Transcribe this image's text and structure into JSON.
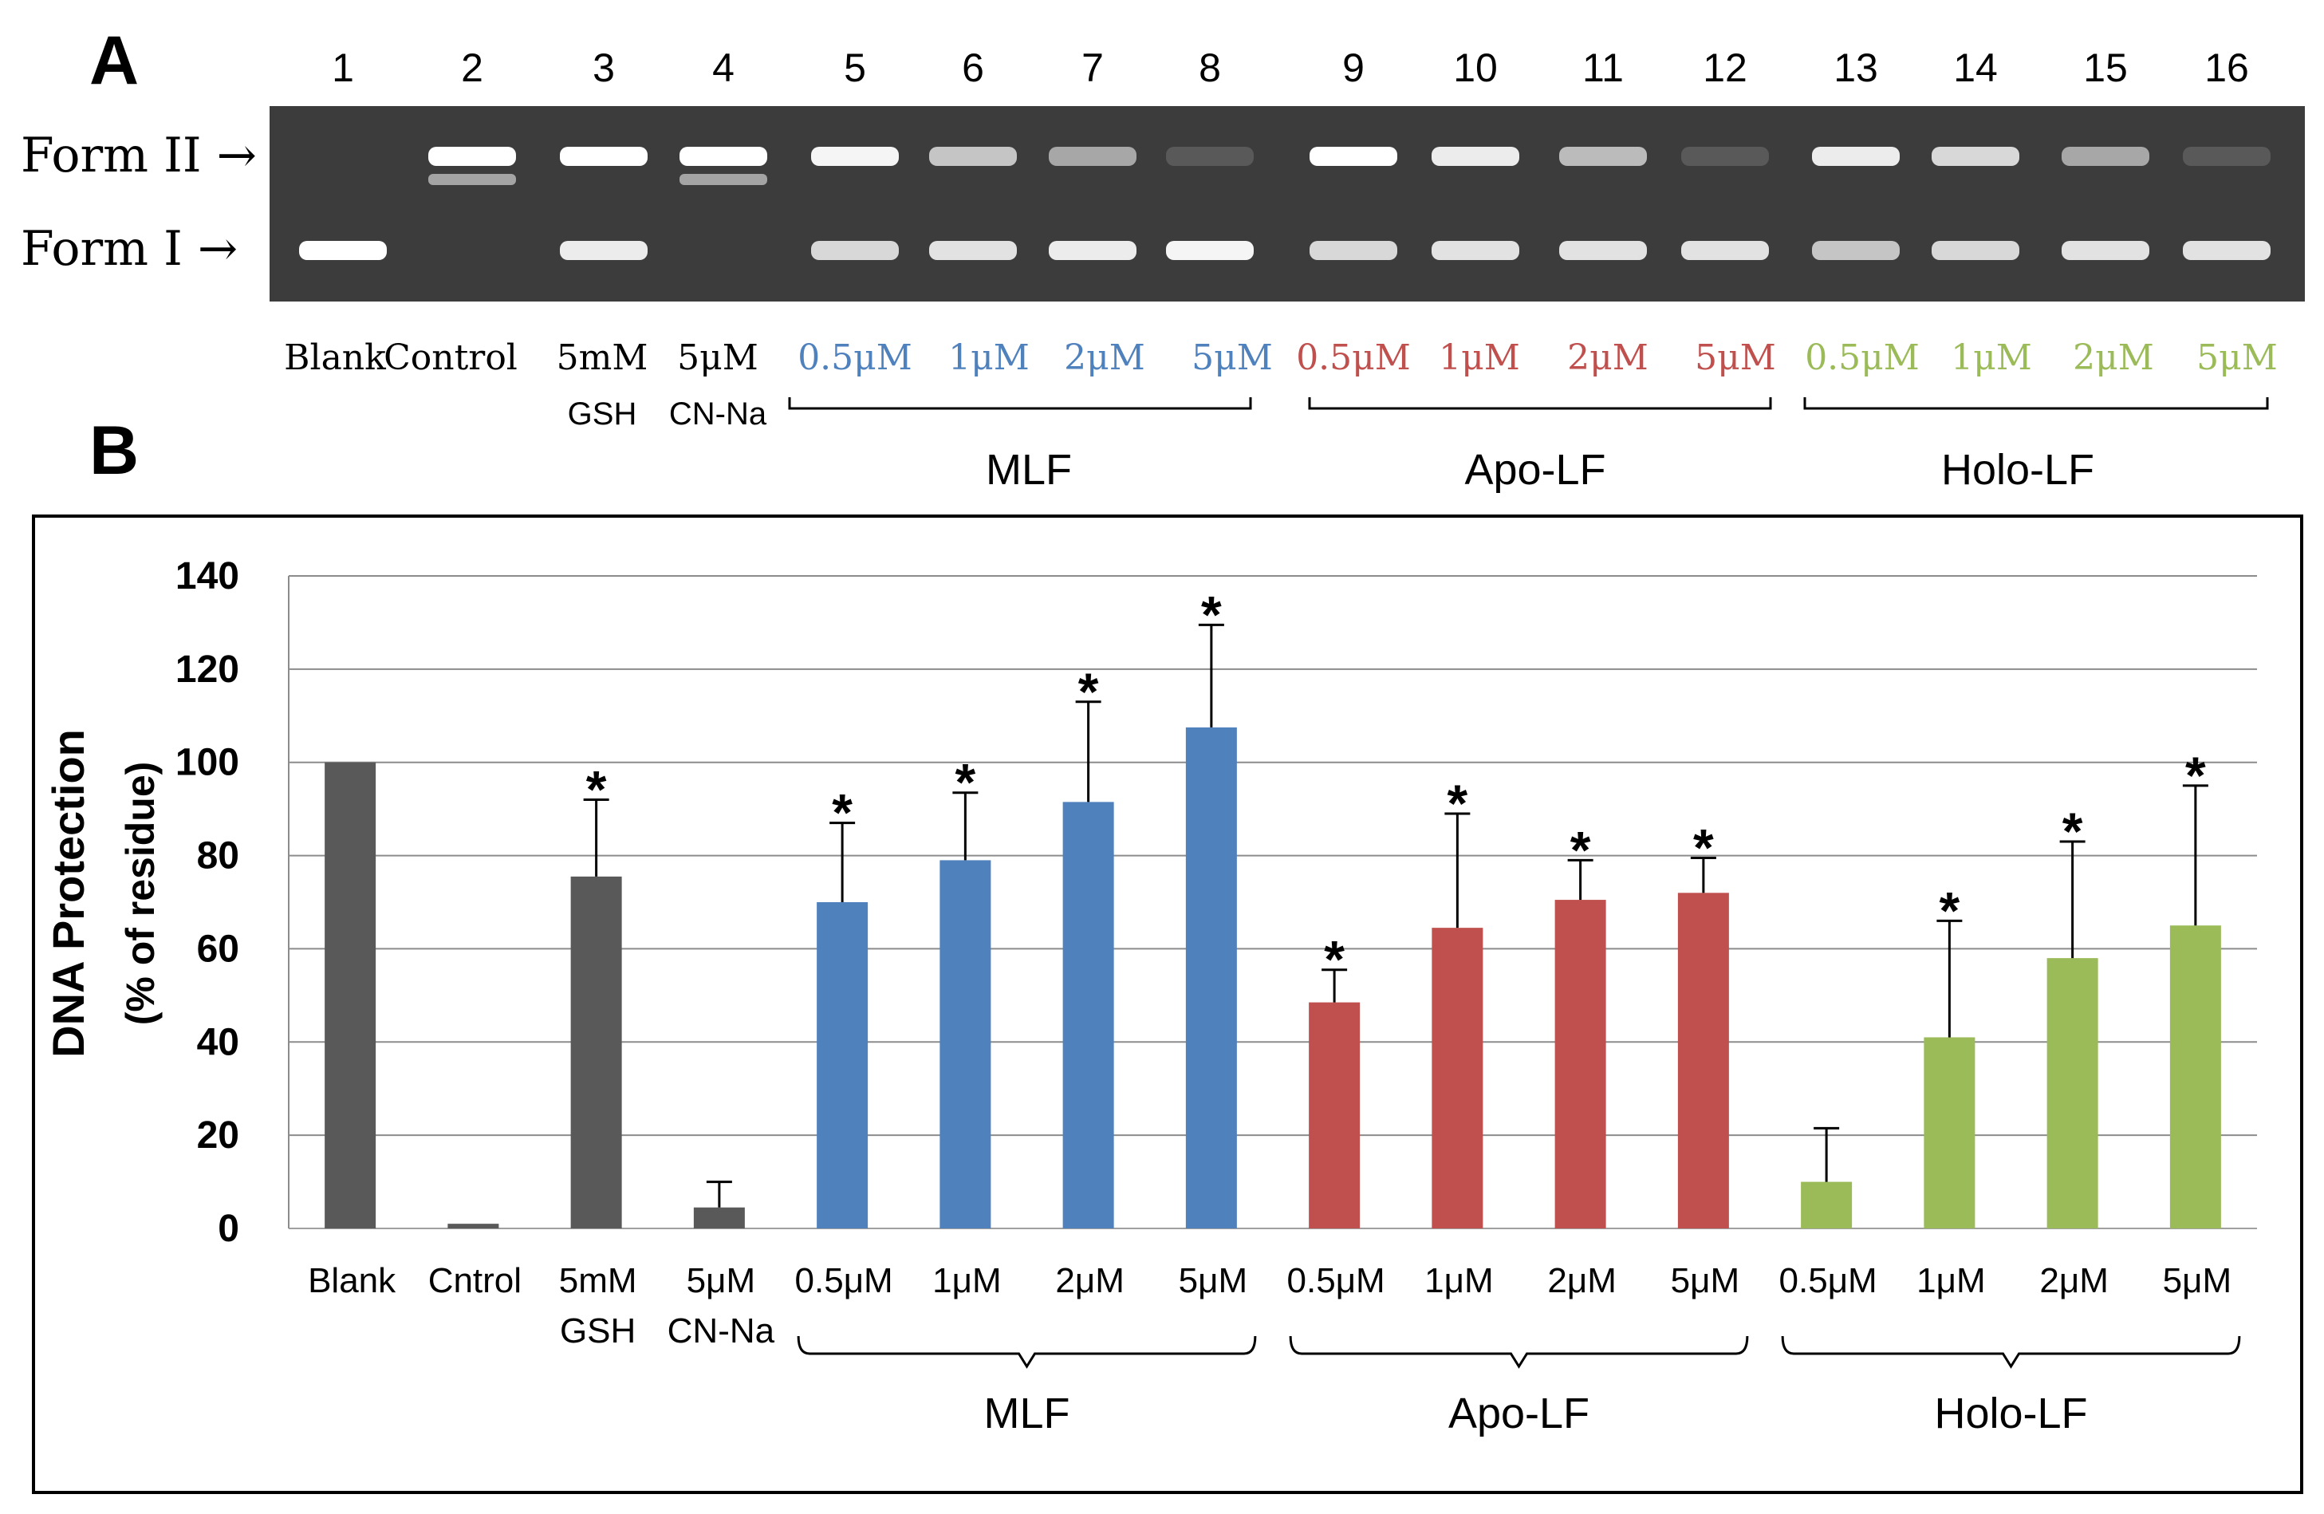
{
  "panel_a": {
    "letter": "A",
    "lane_numbers": [
      "1",
      "2",
      "3",
      "4",
      "5",
      "6",
      "7",
      "8",
      "9",
      "10",
      "11",
      "12",
      "13",
      "14",
      "15",
      "16"
    ],
    "form_labels": [
      "Form II →",
      "Form I →"
    ],
    "form_ii_intensity": [
      0,
      1.0,
      1.0,
      1.0,
      0.95,
      0.7,
      0.55,
      0.15,
      1.0,
      0.9,
      0.65,
      0.15,
      0.9,
      0.8,
      0.55,
      0.15
    ],
    "form_i_intensity": [
      1.0,
      0.05,
      0.9,
      0.05,
      0.8,
      0.85,
      0.9,
      0.95,
      0.8,
      0.85,
      0.85,
      0.85,
      0.7,
      0.8,
      0.85,
      0.85
    ],
    "lane_labels": [
      {
        "top": "Blank",
        "sub": "",
        "color": "#000000"
      },
      {
        "top": "Control",
        "sub": "",
        "color": "#000000"
      },
      {
        "top": "5mM",
        "sub": "GSH",
        "color": "#000000"
      },
      {
        "top": "5μM",
        "sub": "CN-Na",
        "color": "#000000"
      },
      {
        "top": "0.5μM",
        "sub": "",
        "color": "#4f81bd"
      },
      {
        "top": "1μM",
        "sub": "",
        "color": "#4f81bd"
      },
      {
        "top": "2μM",
        "sub": "",
        "color": "#4f81bd"
      },
      {
        "top": "5μM",
        "sub": "",
        "color": "#4f81bd"
      },
      {
        "top": "0.5μM",
        "sub": "",
        "color": "#c0504d"
      },
      {
        "top": "1μM",
        "sub": "",
        "color": "#c0504d"
      },
      {
        "top": "2μM",
        "sub": "",
        "color": "#c0504d"
      },
      {
        "top": "5μM",
        "sub": "",
        "color": "#c0504d"
      },
      {
        "top": "0.5μM",
        "sub": "",
        "color": "#9bbb59"
      },
      {
        "top": "1μM",
        "sub": "",
        "color": "#9bbb59"
      },
      {
        "top": "2μM",
        "sub": "",
        "color": "#9bbb59"
      },
      {
        "top": "5μM",
        "sub": "",
        "color": "#9bbb59"
      }
    ],
    "groups": [
      "MLF",
      "Apo-LF",
      "Holo-LF"
    ]
  },
  "panel_b": {
    "letter": "B"
  },
  "chart_data": {
    "type": "bar",
    "title": "",
    "xlabel": "",
    "ylabel": "DNA Protection",
    "ylabel_sub": "(% of residue)",
    "ylim": [
      0,
      140
    ],
    "yticks": [
      0,
      20,
      40,
      60,
      80,
      100,
      120,
      140
    ],
    "grid": true,
    "categories": [
      "Blank",
      "Cntrol",
      "5mM",
      "5μM",
      "0.5μM",
      "1μM",
      "2μM",
      "5μM",
      "0.5μM",
      "1μM",
      "2μM",
      "5μM",
      "0.5μM",
      "1μM",
      "2μM",
      "5μM"
    ],
    "category_sublabels": [
      "",
      "",
      "GSH",
      "CN-Na",
      "",
      "",
      "",
      "",
      "",
      "",
      "",
      "",
      "",
      "",
      "",
      ""
    ],
    "values": [
      100,
      1,
      75.5,
      4.5,
      70,
      79,
      91.5,
      107.5,
      48.5,
      64.5,
      70.5,
      72,
      10,
      41,
      58,
      65
    ],
    "errors": [
      0,
      0,
      16.5,
      5.5,
      17,
      14.5,
      21.5,
      22,
      7,
      24.5,
      8.5,
      7.5,
      11.5,
      25,
      25,
      30
    ],
    "significant": [
      false,
      false,
      true,
      false,
      true,
      true,
      true,
      true,
      true,
      true,
      true,
      true,
      false,
      true,
      true,
      true
    ],
    "significance_mark": "*",
    "bar_colors": [
      "#595959",
      "#595959",
      "#595959",
      "#595959",
      "#4f81bd",
      "#4f81bd",
      "#4f81bd",
      "#4f81bd",
      "#c0504d",
      "#c0504d",
      "#c0504d",
      "#c0504d",
      "#9bbb59",
      "#9bbb59",
      "#9bbb59",
      "#9bbb59"
    ],
    "groups": [
      {
        "name": "MLF",
        "from": 4,
        "to": 7
      },
      {
        "name": "Apo-LF",
        "from": 8,
        "to": 11
      },
      {
        "name": "Holo-LF",
        "from": 12,
        "to": 15
      }
    ]
  }
}
